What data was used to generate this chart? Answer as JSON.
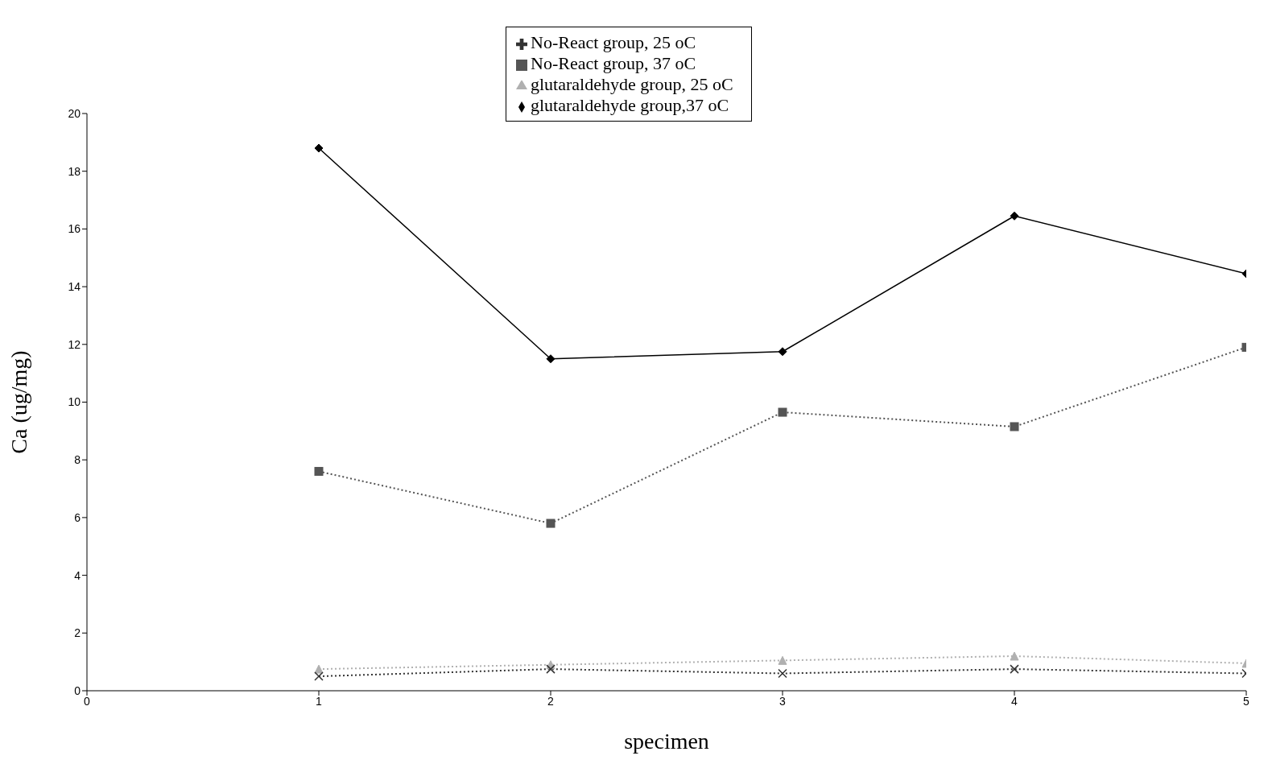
{
  "chart_data": {
    "type": "line",
    "xlabel": "specimen",
    "ylabel": "Ca (ug/mg)",
    "x": [
      1,
      2,
      3,
      4,
      5
    ],
    "xlim": [
      0,
      5
    ],
    "xticks": [
      0,
      1,
      2,
      3,
      4,
      5
    ],
    "ylim": [
      0,
      20
    ],
    "yticks": [
      0,
      2,
      4,
      6,
      8,
      10,
      12,
      14,
      16,
      18,
      20
    ],
    "grid": false,
    "legend": "top",
    "series": [
      {
        "name": "glutaraldehyde group,37 oC",
        "color": "#000000",
        "marker": "diamond",
        "line_style": "solid",
        "values": [
          18.8,
          11.5,
          11.75,
          16.45,
          14.45
        ]
      },
      {
        "name": "No-React group, 37 oC",
        "color": "#555555",
        "marker": "square",
        "line_style": "dotted",
        "values": [
          7.6,
          5.8,
          9.65,
          9.15,
          11.9
        ]
      },
      {
        "name": "glutaraldehyde group, 25 oC",
        "color": "#b0b0b0",
        "marker": "triangle",
        "line_style": "dotted",
        "values": [
          0.75,
          0.9,
          1.05,
          1.2,
          0.95
        ]
      },
      {
        "name": "No-React group, 25 oC",
        "color": "#333333",
        "marker": "cross",
        "line_style": "dotted",
        "values": [
          0.5,
          0.75,
          0.6,
          0.75,
          0.6
        ]
      }
    ]
  }
}
